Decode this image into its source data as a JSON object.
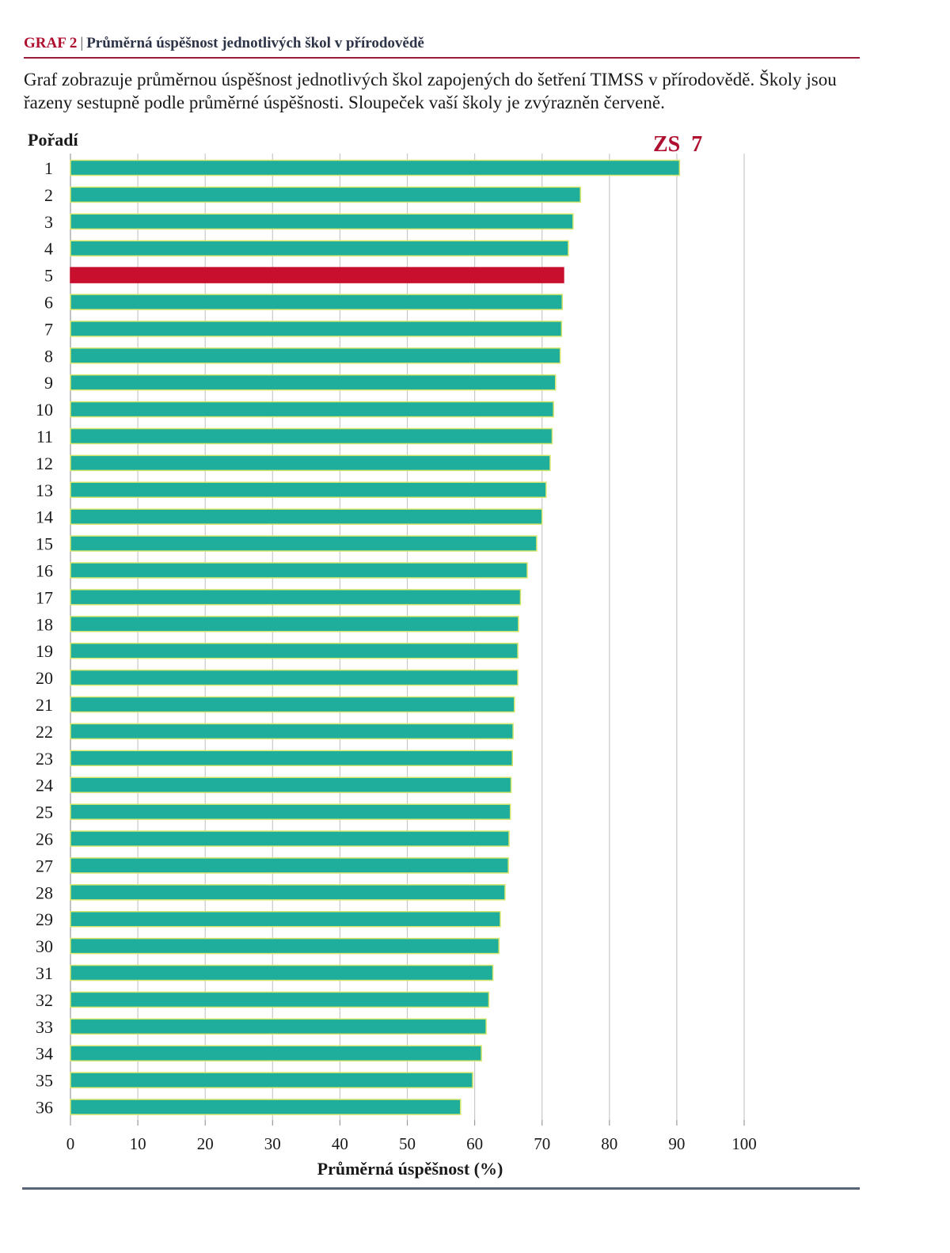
{
  "header": {
    "label": "GRAF 2",
    "separator": "|",
    "title": "Průměrná úspěšnost jednotlivých škol v přírodovědě"
  },
  "description": "Graf zobrazuje průměrnou úspěšnost jednotlivých škol zapojených do šetření TIMSS v přírodovědě. Školy jsou řazeny sestupně podle průměrné úspěšnosti. Sloupeček vaší školy je zvýrazněn červeně.",
  "colors": {
    "bar": "#1fae9c",
    "bar_edge": "#d6e56c",
    "highlight": "#c8102e",
    "grid": "#c8c8c8",
    "accent": "#b0102f"
  },
  "chart_data": {
    "type": "bar",
    "orientation": "horizontal",
    "ylabel": "Pořadí",
    "xlabel": "Průměrná úspěšnost (%)",
    "annotation": "ZS  7",
    "highlight_category": "5",
    "xlim": [
      0,
      100
    ],
    "xticks": [
      0,
      10,
      20,
      30,
      40,
      50,
      60,
      70,
      80,
      90,
      100
    ],
    "grid": "vertical",
    "categories": [
      "1",
      "2",
      "3",
      "4",
      "5",
      "6",
      "7",
      "8",
      "9",
      "10",
      "11",
      "12",
      "13",
      "14",
      "15",
      "16",
      "17",
      "18",
      "19",
      "20",
      "21",
      "22",
      "23",
      "24",
      "25",
      "26",
      "27",
      "28",
      "29",
      "30",
      "31",
      "32",
      "33",
      "34",
      "35",
      "36"
    ],
    "values": [
      90.4,
      75.7,
      74.6,
      73.9,
      73.2,
      73.0,
      72.9,
      72.7,
      72.0,
      71.7,
      71.5,
      71.2,
      70.6,
      70.0,
      69.2,
      67.8,
      66.8,
      66.5,
      66.4,
      66.4,
      65.9,
      65.7,
      65.6,
      65.4,
      65.3,
      65.1,
      65.0,
      64.5,
      63.8,
      63.6,
      62.7,
      62.1,
      61.7,
      61.0,
      59.7,
      57.9
    ]
  }
}
